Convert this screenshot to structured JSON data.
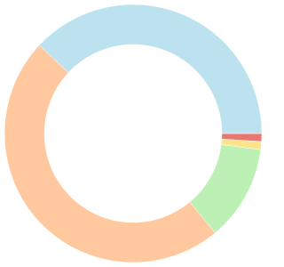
{
  "chart_data": {
    "type": "donut",
    "values": [
      1,
      1,
      12,
      48,
      38
    ],
    "colors": [
      "#e8776f",
      "#fde38a",
      "#bdf0b5",
      "#ffc89e",
      "#bde2ef"
    ]
  }
}
